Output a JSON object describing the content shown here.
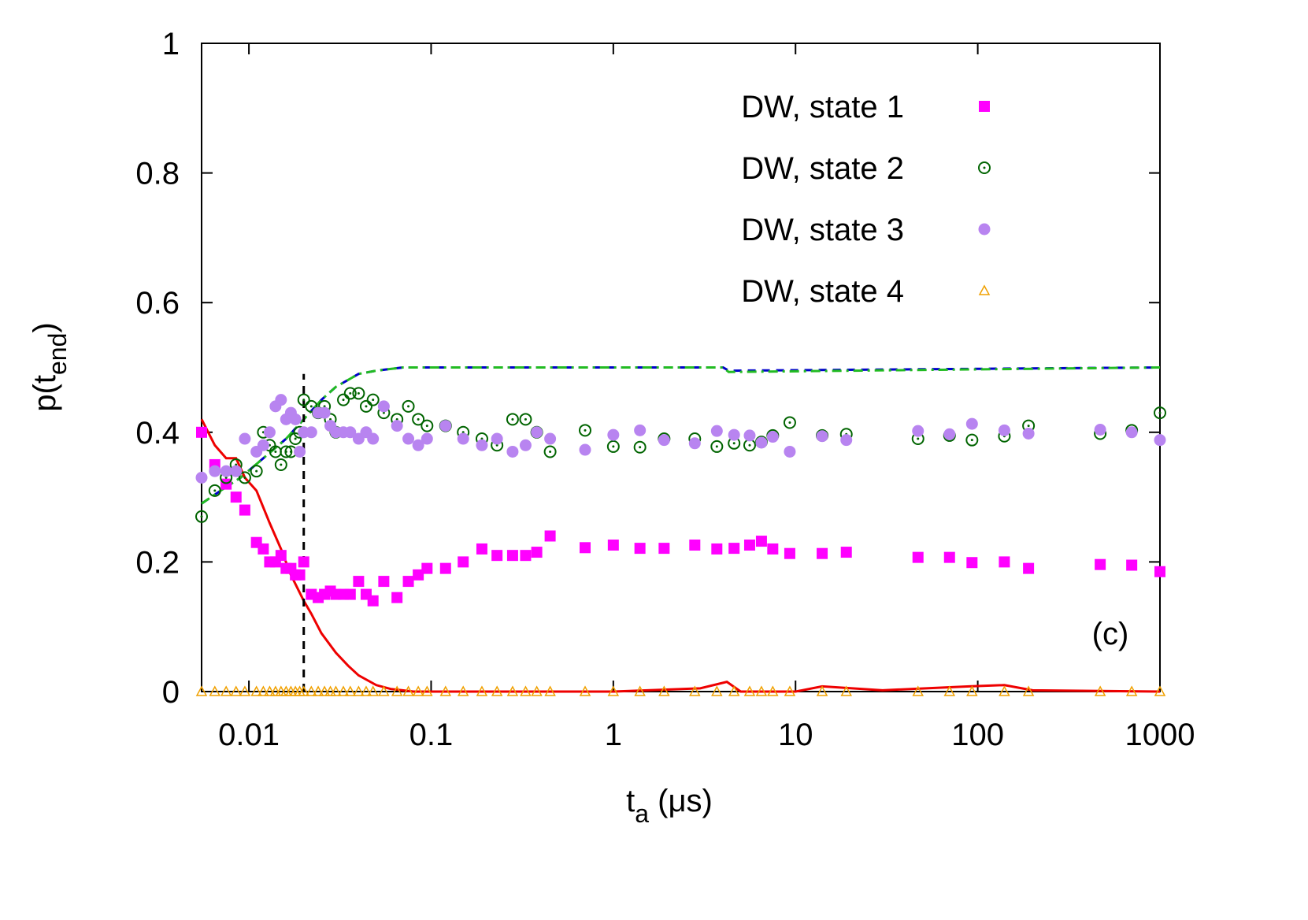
{
  "chart_data": {
    "type": "scatter",
    "x_label_parts": [
      "t",
      "a",
      " (μs)"
    ],
    "y_label_parts": [
      "p(t",
      "end",
      ")"
    ],
    "annotation": "(c)",
    "xscale": "log",
    "xlim": [
      0.0055,
      1000
    ],
    "ylim": [
      0,
      1
    ],
    "xticks": [
      0.01,
      0.1,
      1,
      10,
      100,
      1000
    ],
    "yticks": [
      0,
      0.2,
      0.4,
      0.6,
      0.8,
      1
    ],
    "legend": "top-right",
    "x": [
      0.0055,
      0.0065,
      0.0075,
      0.0085,
      0.0095,
      0.011,
      0.012,
      0.013,
      0.014,
      0.015,
      0.016,
      0.017,
      0.018,
      0.019,
      0.02,
      0.022,
      0.024,
      0.026,
      0.028,
      0.03,
      0.033,
      0.036,
      0.04,
      0.044,
      0.048,
      0.055,
      0.065,
      0.075,
      0.085,
      0.095,
      0.12,
      0.15,
      0.19,
      0.23,
      0.28,
      0.33,
      0.38,
      0.45,
      0.7,
      1,
      1.4,
      1.9,
      2.8,
      3.7,
      4.6,
      5.6,
      6.5,
      7.5,
      9.3,
      14,
      19,
      47,
      70,
      93,
      140,
      190,
      470,
      700,
      1000
    ],
    "series": [
      {
        "name": "DW, state 1",
        "color": "#ff00ff",
        "marker": "square",
        "values": [
          0.4,
          0.35,
          0.32,
          0.3,
          0.28,
          0.23,
          0.22,
          0.2,
          0.2,
          0.21,
          0.19,
          0.19,
          0.18,
          0.18,
          0.2,
          0.15,
          0.145,
          0.15,
          0.155,
          0.15,
          0.15,
          0.15,
          0.17,
          0.15,
          0.14,
          0.17,
          0.145,
          0.17,
          0.18,
          0.19,
          0.19,
          0.2,
          0.22,
          0.21,
          0.21,
          0.21,
          0.215,
          0.24,
          0.222,
          0.226,
          0.221,
          0.221,
          0.226,
          0.22,
          0.221,
          0.226,
          0.232,
          0.22,
          0.213,
          0.213,
          0.215,
          0.207,
          0.207,
          0.199,
          0.2,
          0.19,
          0.196,
          0.195,
          0.185
        ]
      },
      {
        "name": "DW, state 2",
        "color": "#006400",
        "marker": "open-circle",
        "values": [
          0.27,
          0.31,
          0.33,
          0.35,
          0.33,
          0.34,
          0.4,
          0.38,
          0.37,
          0.35,
          0.37,
          0.37,
          0.39,
          0.4,
          0.45,
          0.44,
          0.43,
          0.44,
          0.42,
          0.4,
          0.45,
          0.46,
          0.46,
          0.44,
          0.45,
          0.43,
          0.42,
          0.44,
          0.42,
          0.41,
          0.41,
          0.4,
          0.39,
          0.38,
          0.42,
          0.42,
          0.4,
          0.37,
          0.403,
          0.378,
          0.377,
          0.39,
          0.39,
          0.378,
          0.383,
          0.38,
          0.385,
          0.395,
          0.415,
          0.395,
          0.397,
          0.39,
          0.395,
          0.388,
          0.394,
          0.41,
          0.398,
          0.403,
          0.43
        ]
      },
      {
        "name": "DW, state 3",
        "color": "#b884f0",
        "marker": "circle",
        "values": [
          0.33,
          0.34,
          0.34,
          0.34,
          0.39,
          0.37,
          0.38,
          0.4,
          0.44,
          0.45,
          0.42,
          0.43,
          0.42,
          0.37,
          0.4,
          0.4,
          0.43,
          0.43,
          0.41,
          0.4,
          0.4,
          0.4,
          0.39,
          0.4,
          0.39,
          0.44,
          0.41,
          0.39,
          0.38,
          0.39,
          0.41,
          0.39,
          0.38,
          0.39,
          0.37,
          0.38,
          0.4,
          0.39,
          0.373,
          0.396,
          0.403,
          0.388,
          0.383,
          0.402,
          0.396,
          0.395,
          0.384,
          0.393,
          0.37,
          0.394,
          0.388,
          0.402,
          0.397,
          0.413,
          0.403,
          0.398,
          0.404,
          0.4,
          0.388
        ]
      },
      {
        "name": "DW, state 4",
        "color": "#f0a000",
        "marker": "triangle",
        "values": [
          0,
          0,
          0,
          0,
          0,
          0,
          0,
          0,
          0,
          0,
          0,
          0,
          0,
          0,
          0,
          0,
          0,
          0,
          0,
          0,
          0,
          0,
          0,
          0,
          0,
          0,
          0,
          0,
          0,
          0,
          0,
          0,
          0,
          0,
          0,
          0,
          0,
          0,
          0,
          0,
          0,
          0,
          0,
          0,
          0,
          0,
          0,
          0,
          0,
          0,
          0,
          0,
          0,
          0,
          0,
          0,
          0,
          0,
          0
        ]
      }
    ],
    "lines": [
      {
        "color": "#0000cc",
        "dash": "dash",
        "x": [
          0.0055,
          0.007,
          0.009,
          0.012,
          0.016,
          0.02,
          0.025,
          0.03,
          0.04,
          0.05,
          0.07,
          4,
          4.3,
          1000
        ],
        "values": [
          0.29,
          0.31,
          0.33,
          0.36,
          0.39,
          0.42,
          0.45,
          0.47,
          0.49,
          0.495,
          0.5,
          0.5,
          0.495,
          0.5
        ]
      },
      {
        "color": "#22bb22",
        "dash": "dashdot",
        "x": [
          0.0055,
          0.007,
          0.009,
          0.012,
          0.016,
          0.02,
          0.025,
          0.03,
          0.04,
          0.05,
          0.07,
          4,
          4.3,
          1000
        ],
        "values": [
          0.29,
          0.31,
          0.33,
          0.36,
          0.39,
          0.42,
          0.45,
          0.47,
          0.49,
          0.495,
          0.5,
          0.5,
          0.493,
          0.5
        ]
      },
      {
        "color": "#ee0000",
        "dash": "solid",
        "x": [
          0.0055,
          0.0065,
          0.0075,
          0.0085,
          0.0095,
          0.011,
          0.013,
          0.015,
          0.017,
          0.02,
          0.022,
          0.025,
          0.03,
          0.035,
          0.04,
          0.05,
          0.06,
          0.08,
          0.2,
          1,
          3,
          4.2,
          5,
          10,
          14,
          30,
          90,
          140,
          200,
          1000
        ],
        "values": [
          0.42,
          0.38,
          0.36,
          0.36,
          0.33,
          0.31,
          0.26,
          0.22,
          0.18,
          0.14,
          0.12,
          0.09,
          0.06,
          0.04,
          0.025,
          0.01,
          0.004,
          0,
          0,
          0,
          0.005,
          0.015,
          0,
          0,
          0.008,
          0.002,
          0.008,
          0.01,
          0.002,
          0
        ]
      },
      {
        "color": "#000000",
        "dash": "dash",
        "x": [
          0.02,
          0.02
        ],
        "values": [
          0,
          0.49
        ]
      }
    ]
  }
}
